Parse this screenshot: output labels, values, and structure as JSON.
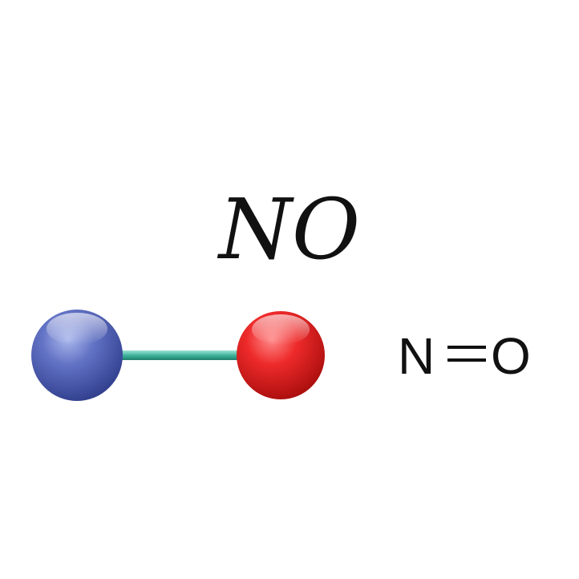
{
  "molecule": {
    "formula": "NO",
    "structural_formula": {
      "left_atom": "N",
      "right_atom": "O",
      "bond": "double-bond"
    },
    "atoms": [
      {
        "element": "N",
        "color": "#4a5cb0"
      },
      {
        "element": "O",
        "color": "#e31b23"
      }
    ],
    "bond_color": "#3fb49c"
  }
}
